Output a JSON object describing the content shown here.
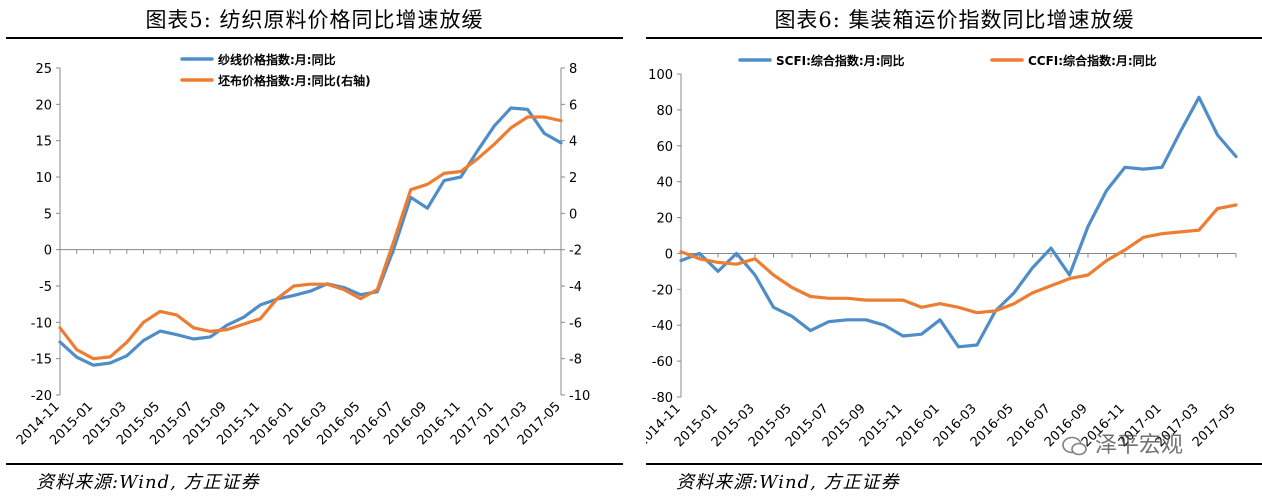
{
  "left": {
    "title": "图表5:  纺织原料价格同比增速放缓",
    "source": "资料来源:Wind, 方正证券"
  },
  "right": {
    "title": "图表6:  集装箱运价指数同比增速放缓",
    "source": "资料来源:Wind, 方正证券"
  },
  "watermark": {
    "text": "泽平宏观"
  },
  "colors": {
    "blue": "#4F8DC9",
    "orange": "#ED7D31"
  },
  "chart_data": [
    {
      "type": "line",
      "x": [
        "2014-11",
        "2014-12",
        "2015-01",
        "2015-02",
        "2015-03",
        "2015-04",
        "2015-05",
        "2015-06",
        "2015-07",
        "2015-08",
        "2015-09",
        "2015-10",
        "2015-11",
        "2015-12",
        "2016-01",
        "2016-02",
        "2016-03",
        "2016-04",
        "2016-05",
        "2016-06",
        "2016-07",
        "2016-08",
        "2016-09",
        "2016-10",
        "2016-11",
        "2016-12",
        "2017-01",
        "2017-02",
        "2017-03",
        "2017-04",
        "2017-05"
      ],
      "x_tick_labels": [
        "2014-11",
        "2015-01",
        "2015-03",
        "2015-05",
        "2015-07",
        "2015-09",
        "2015-11",
        "2016-01",
        "2016-03",
        "2016-05",
        "2016-07",
        "2016-09",
        "2016-11",
        "2017-01",
        "2017-03",
        "2017-05"
      ],
      "ylim": [
        -20,
        25
      ],
      "y_ticks": [
        -20,
        -15,
        -10,
        -5,
        0,
        5,
        10,
        15,
        20,
        25
      ],
      "y2lim": [
        -10,
        8
      ],
      "y2_ticks": [
        -10,
        -8,
        -6,
        -4,
        -2,
        0,
        2,
        4,
        6,
        8
      ],
      "legend_position": "top-center",
      "series": [
        {
          "name": "纱线价格指数:月:同比",
          "axis": "left",
          "color": "#4F8DC9",
          "values": [
            -12.7,
            -14.8,
            -15.9,
            -15.6,
            -14.6,
            -12.5,
            -11.2,
            -11.7,
            -12.3,
            -12.0,
            -10.4,
            -9.3,
            -7.6,
            -6.8,
            -6.3,
            -5.7,
            -4.7,
            -5.2,
            -6.2,
            -5.8,
            0.2,
            7.2,
            5.7,
            9.5,
            10.0,
            13.6,
            17.0,
            19.5,
            19.3,
            16.0,
            14.7
          ]
        },
        {
          "name": "坯布价格指数:月:同比(右轴)",
          "axis": "right",
          "color": "#ED7D31",
          "values": [
            -6.3,
            -7.5,
            -8.0,
            -7.9,
            -7.1,
            -6.0,
            -5.4,
            -5.6,
            -6.3,
            -6.5,
            -6.4,
            -6.1,
            -5.8,
            -4.7,
            -4.0,
            -3.9,
            -3.9,
            -4.2,
            -4.7,
            -4.2,
            -1.5,
            1.3,
            1.6,
            2.2,
            2.3,
            3.0,
            3.8,
            4.7,
            5.3,
            5.3,
            5.1
          ]
        }
      ]
    },
    {
      "type": "line",
      "x": [
        "2014-11",
        "2014-12",
        "2015-01",
        "2015-02",
        "2015-03",
        "2015-04",
        "2015-05",
        "2015-06",
        "2015-07",
        "2015-08",
        "2015-09",
        "2015-10",
        "2015-11",
        "2015-12",
        "2016-01",
        "2016-02",
        "2016-03",
        "2016-04",
        "2016-05",
        "2016-06",
        "2016-07",
        "2016-08",
        "2016-09",
        "2016-10",
        "2016-11",
        "2016-12",
        "2017-01",
        "2017-02",
        "2017-03",
        "2017-04",
        "2017-05"
      ],
      "x_tick_labels": [
        "2014-11",
        "2015-01",
        "2015-03",
        "2015-05",
        "2015-07",
        "2015-09",
        "2015-11",
        "2016-01",
        "2016-03",
        "2016-05",
        "2016-07",
        "2016-09",
        "2016-11",
        "2017-01",
        "2017-03",
        "2017-05"
      ],
      "ylim": [
        -80,
        100
      ],
      "y_ticks": [
        -80,
        -60,
        -40,
        -20,
        0,
        20,
        40,
        60,
        80,
        100
      ],
      "legend_position": "top",
      "series": [
        {
          "name": "SCFI:综合指数:月:同比",
          "color": "#4F8DC9",
          "values": [
            -4,
            0,
            -10,
            0,
            -12,
            -30,
            -35,
            -43,
            -38,
            -37,
            -37,
            -40,
            -46,
            -45,
            -37,
            -52,
            -51,
            -32,
            -22,
            -8,
            3,
            -12,
            15,
            35,
            48,
            47,
            48,
            68,
            87,
            66,
            54
          ]
        },
        {
          "name": "CCFI:综合指数:月:同比",
          "color": "#ED7D31",
          "values": [
            1,
            -3,
            -5,
            -6,
            -3,
            -12,
            -19,
            -24,
            -25,
            -25,
            -26,
            -26,
            -26,
            -30,
            -28,
            -30,
            -33,
            -32,
            -28,
            -22,
            -18,
            -14,
            -12,
            -4,
            2,
            9,
            11,
            12,
            13,
            25,
            27
          ]
        }
      ]
    }
  ]
}
